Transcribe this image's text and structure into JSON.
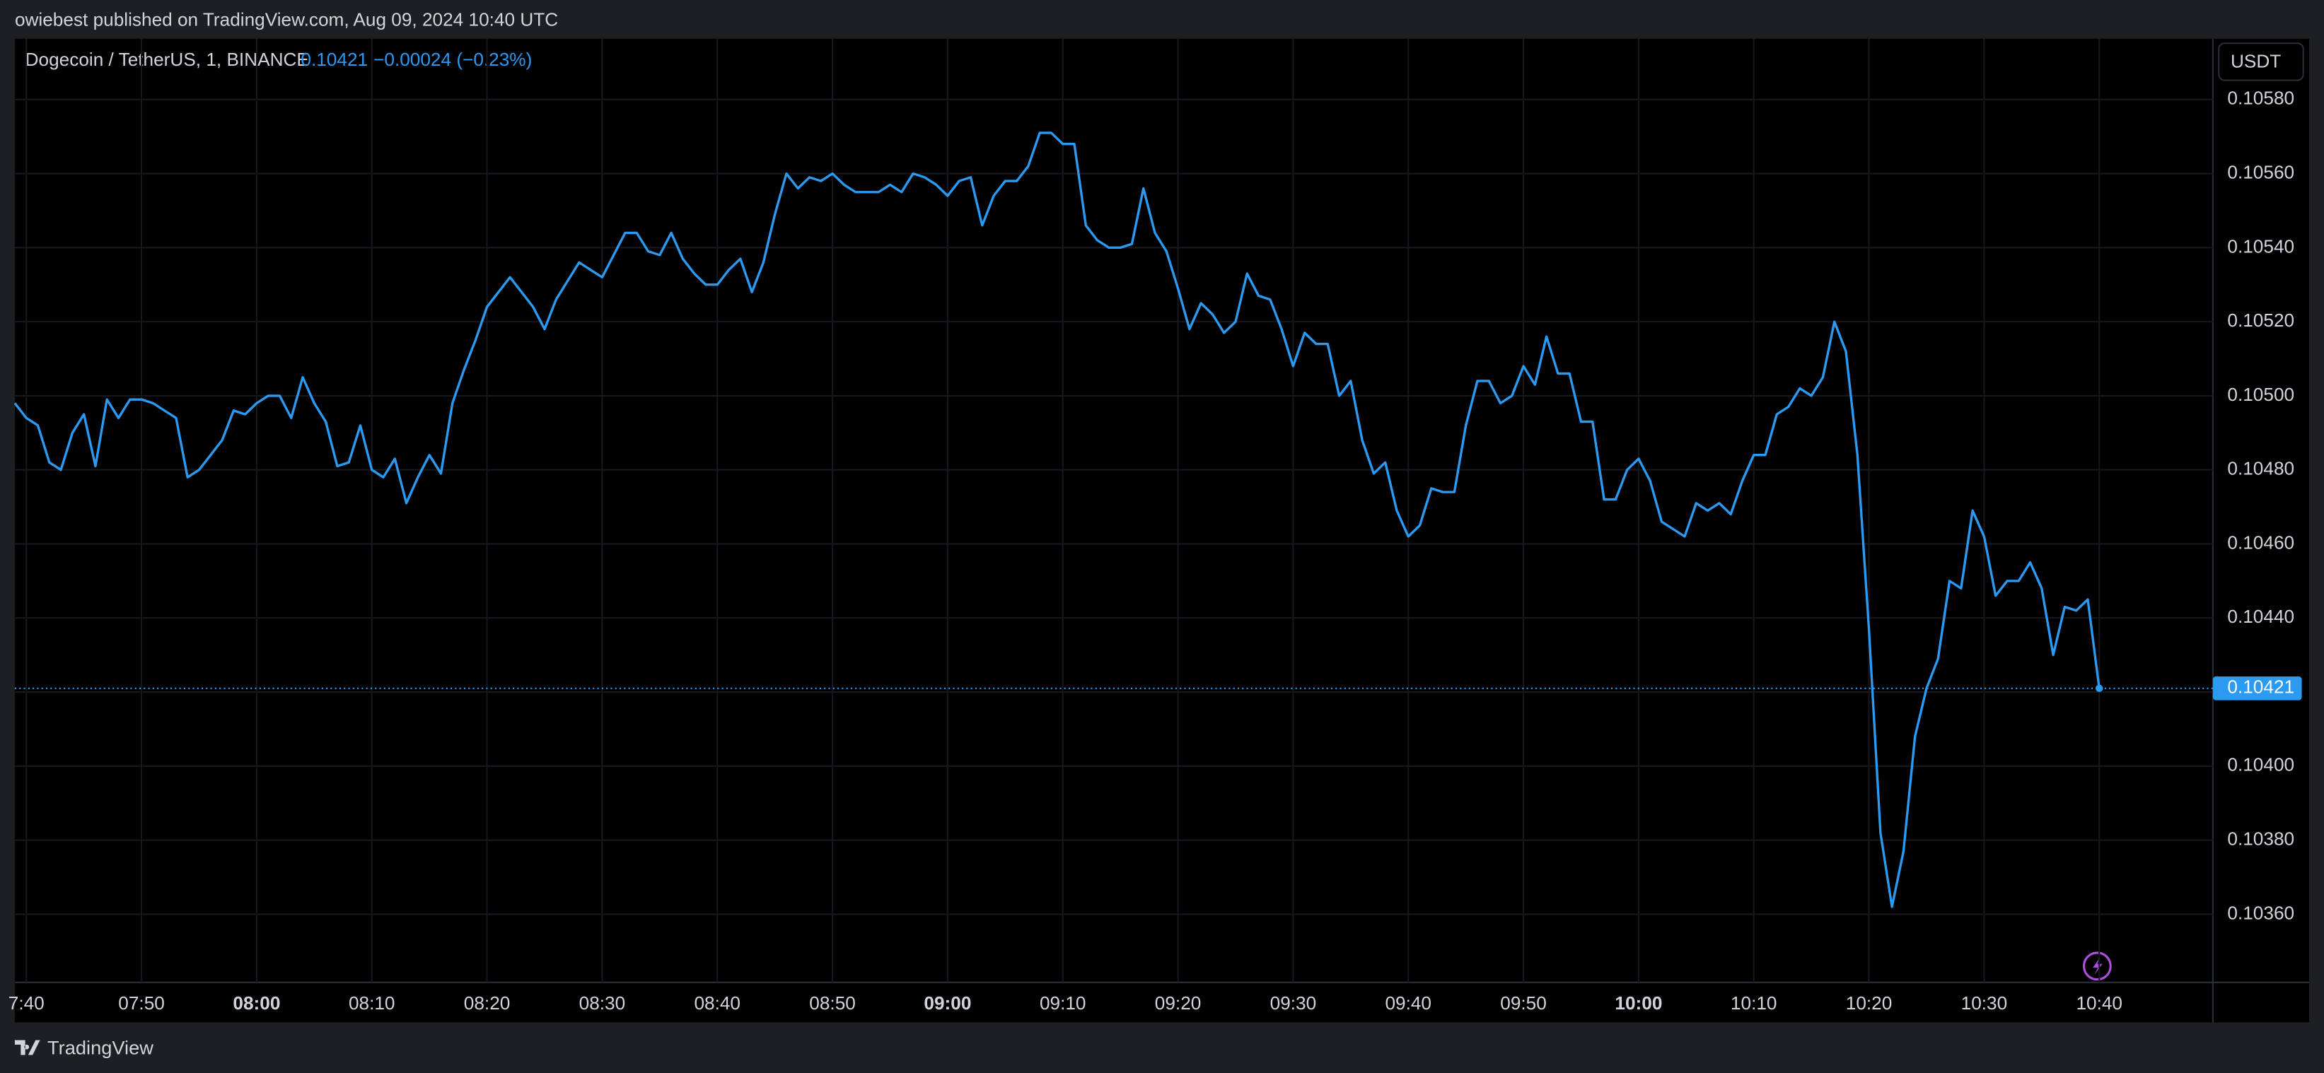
{
  "header": "owiebest published on TradingView.com, Aug 09, 2024 10:40 UTC",
  "footer": "TradingView",
  "currency": "USDT",
  "chart_data": {
    "type": "line",
    "title": "Dogecoin / TetherUS, 1, BINANCE",
    "change": "−0.00024 (−0.23%)",
    "categories": [
      null,
      "7:40",
      null,
      null,
      null,
      null,
      null,
      null,
      null,
      null,
      null,
      "07:50",
      null,
      null,
      null,
      null,
      null,
      null,
      null,
      null,
      null,
      "08:00",
      null,
      null,
      null,
      null,
      null,
      null,
      null,
      null,
      null,
      "08:10",
      null,
      null,
      null,
      null,
      null,
      null,
      null,
      null,
      null,
      "08:20",
      null,
      null,
      null,
      null,
      null,
      null,
      null,
      null,
      null,
      "08:30",
      null,
      null,
      null,
      null,
      null,
      null,
      null,
      null,
      null,
      "08:40",
      null,
      null,
      null,
      null,
      null,
      null,
      null,
      null,
      null,
      "08:50",
      null,
      null,
      null,
      null,
      null,
      null,
      null,
      null,
      null,
      "09:00",
      null,
      null,
      null,
      null,
      null,
      null,
      null,
      null,
      null,
      "09:10",
      null,
      null,
      null,
      null,
      null,
      null,
      null,
      null,
      null,
      "09:20",
      null,
      null,
      null,
      null,
      null,
      null,
      null,
      null,
      null,
      "09:30",
      null,
      null,
      null,
      null,
      null,
      null,
      null,
      null,
      null,
      "09:40",
      null,
      null,
      null,
      null,
      null,
      null,
      null,
      null,
      null,
      "09:50",
      null,
      null,
      null,
      null,
      null,
      null,
      null,
      null,
      null,
      "10:00",
      null,
      null,
      null,
      null,
      null,
      null,
      null,
      null,
      null,
      "10:10",
      null,
      null,
      null,
      null,
      null,
      null,
      null,
      null,
      null,
      "10:20",
      null,
      null,
      null,
      null,
      null,
      null,
      null,
      null,
      null,
      "10:30",
      null,
      null,
      null,
      null,
      null,
      null,
      null,
      null,
      null,
      "10:40"
    ],
    "series": [
      {
        "name": "Dogecoin / TetherUS",
        "color": "#2b9af3",
        "values": [
          0.10498,
          0.10494,
          0.10492,
          0.10482,
          0.1048,
          0.1049,
          0.10495,
          0.10481,
          0.10499,
          0.10494,
          0.10499,
          0.10499,
          0.10498,
          0.10496,
          0.10494,
          0.10478,
          0.1048,
          0.10484,
          0.10488,
          0.10496,
          0.10495,
          0.10498,
          0.105,
          0.105,
          0.10494,
          0.10505,
          0.10498,
          0.10493,
          0.10481,
          0.10482,
          0.10492,
          0.1048,
          0.10478,
          0.10483,
          0.10471,
          0.10478,
          0.10484,
          0.10479,
          0.10498,
          0.10507,
          0.10515,
          0.10524,
          0.10528,
          0.10532,
          0.10528,
          0.10524,
          0.10518,
          0.10526,
          0.10531,
          0.10536,
          0.10534,
          0.10532,
          0.10538,
          0.10544,
          0.10544,
          0.10539,
          0.10538,
          0.10544,
          0.10537,
          0.10533,
          0.1053,
          0.1053,
          0.10534,
          0.10537,
          0.10528,
          0.10536,
          0.10549,
          0.1056,
          0.10556,
          0.10559,
          0.10558,
          0.1056,
          0.10557,
          0.10555,
          0.10555,
          0.10555,
          0.10557,
          0.10555,
          0.1056,
          0.10559,
          0.10557,
          0.10554,
          0.10558,
          0.10559,
          0.10546,
          0.10554,
          0.10558,
          0.10558,
          0.10562,
          0.10571,
          0.10571,
          0.10568,
          0.10568,
          0.10546,
          0.10542,
          0.1054,
          0.1054,
          0.10541,
          0.10556,
          0.10544,
          0.10539,
          0.10529,
          0.10518,
          0.10525,
          0.10522,
          0.10517,
          0.1052,
          0.10533,
          0.10527,
          0.10526,
          0.10518,
          0.10508,
          0.10517,
          0.10514,
          0.10514,
          0.105,
          0.10504,
          0.10488,
          0.10479,
          0.10482,
          0.10469,
          0.10462,
          0.10465,
          0.10475,
          0.10474,
          0.10474,
          0.10492,
          0.10504,
          0.10504,
          0.10498,
          0.105,
          0.10508,
          0.10503,
          0.10516,
          0.10506,
          0.10506,
          0.10493,
          0.10493,
          0.10472,
          0.10472,
          0.1048,
          0.10483,
          0.10477,
          0.10466,
          0.10464,
          0.10462,
          0.10471,
          0.10469,
          0.10471,
          0.10468,
          0.10477,
          0.10484,
          0.10484,
          0.10495,
          0.10497,
          0.10502,
          0.105,
          0.10505,
          0.1052,
          0.10512,
          0.10484,
          0.10437,
          0.10382,
          0.10362,
          0.10377,
          0.10408,
          0.10421,
          0.10429,
          0.1045,
          0.10448,
          0.10469,
          0.10462,
          0.10446,
          0.1045,
          0.1045,
          0.10455,
          0.10448,
          0.1043,
          0.10443,
          0.10442,
          0.10445,
          0.10421
        ]
      }
    ],
    "ylim": [
      0.103416,
      0.105964
    ],
    "yticks": [
      {
        "value": 0.1036,
        "label": "0.10360"
      },
      {
        "value": 0.1038,
        "label": "0.10380"
      },
      {
        "value": 0.104,
        "label": "0.10400"
      },
      {
        "value": 0.1042,
        "label": "0.10420"
      },
      {
        "value": 0.1044,
        "label": "0.10440"
      },
      {
        "value": 0.1046,
        "label": "0.10460"
      },
      {
        "value": 0.1048,
        "label": "0.10480"
      },
      {
        "value": 0.105,
        "label": "0.10500"
      },
      {
        "value": 0.1052,
        "label": "0.10520"
      },
      {
        "value": 0.1054,
        "label": "0.10540"
      },
      {
        "value": 0.1056,
        "label": "0.10560"
      },
      {
        "value": 0.1058,
        "label": "0.10580"
      }
    ],
    "grid": true
  }
}
